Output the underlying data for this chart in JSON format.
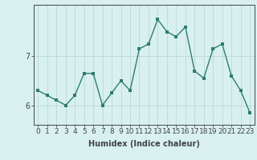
{
  "xlabel": "Humidex (Indice chaleur)",
  "ylabel": "",
  "x": [
    0,
    1,
    2,
    3,
    4,
    5,
    6,
    7,
    8,
    9,
    10,
    11,
    12,
    13,
    14,
    15,
    16,
    17,
    18,
    19,
    20,
    21,
    22,
    23
  ],
  "y": [
    6.3,
    6.2,
    6.1,
    6.0,
    6.2,
    6.65,
    6.65,
    6.0,
    6.25,
    6.5,
    6.3,
    7.15,
    7.25,
    7.75,
    7.5,
    7.4,
    7.6,
    6.7,
    6.55,
    7.15,
    7.25,
    6.6,
    6.3,
    5.85
  ],
  "line_color": "#2e7d6e",
  "marker_color": "#2e7d6e",
  "bg_color": "#d8f0f0",
  "grid_color": "#b8d4d4",
  "axis_color": "#444444",
  "ytick_labels": [
    "6",
    "7"
  ],
  "ytick_values": [
    6,
    7
  ],
  "ylim": [
    5.6,
    8.05
  ],
  "xlim": [
    -0.5,
    23.5
  ],
  "xtick_values": [
    0,
    1,
    2,
    3,
    4,
    5,
    6,
    7,
    8,
    9,
    10,
    11,
    12,
    13,
    14,
    15,
    16,
    17,
    18,
    19,
    20,
    21,
    22,
    23
  ],
  "font_size": 7.0,
  "marker_size": 2.5,
  "line_width": 1.0
}
